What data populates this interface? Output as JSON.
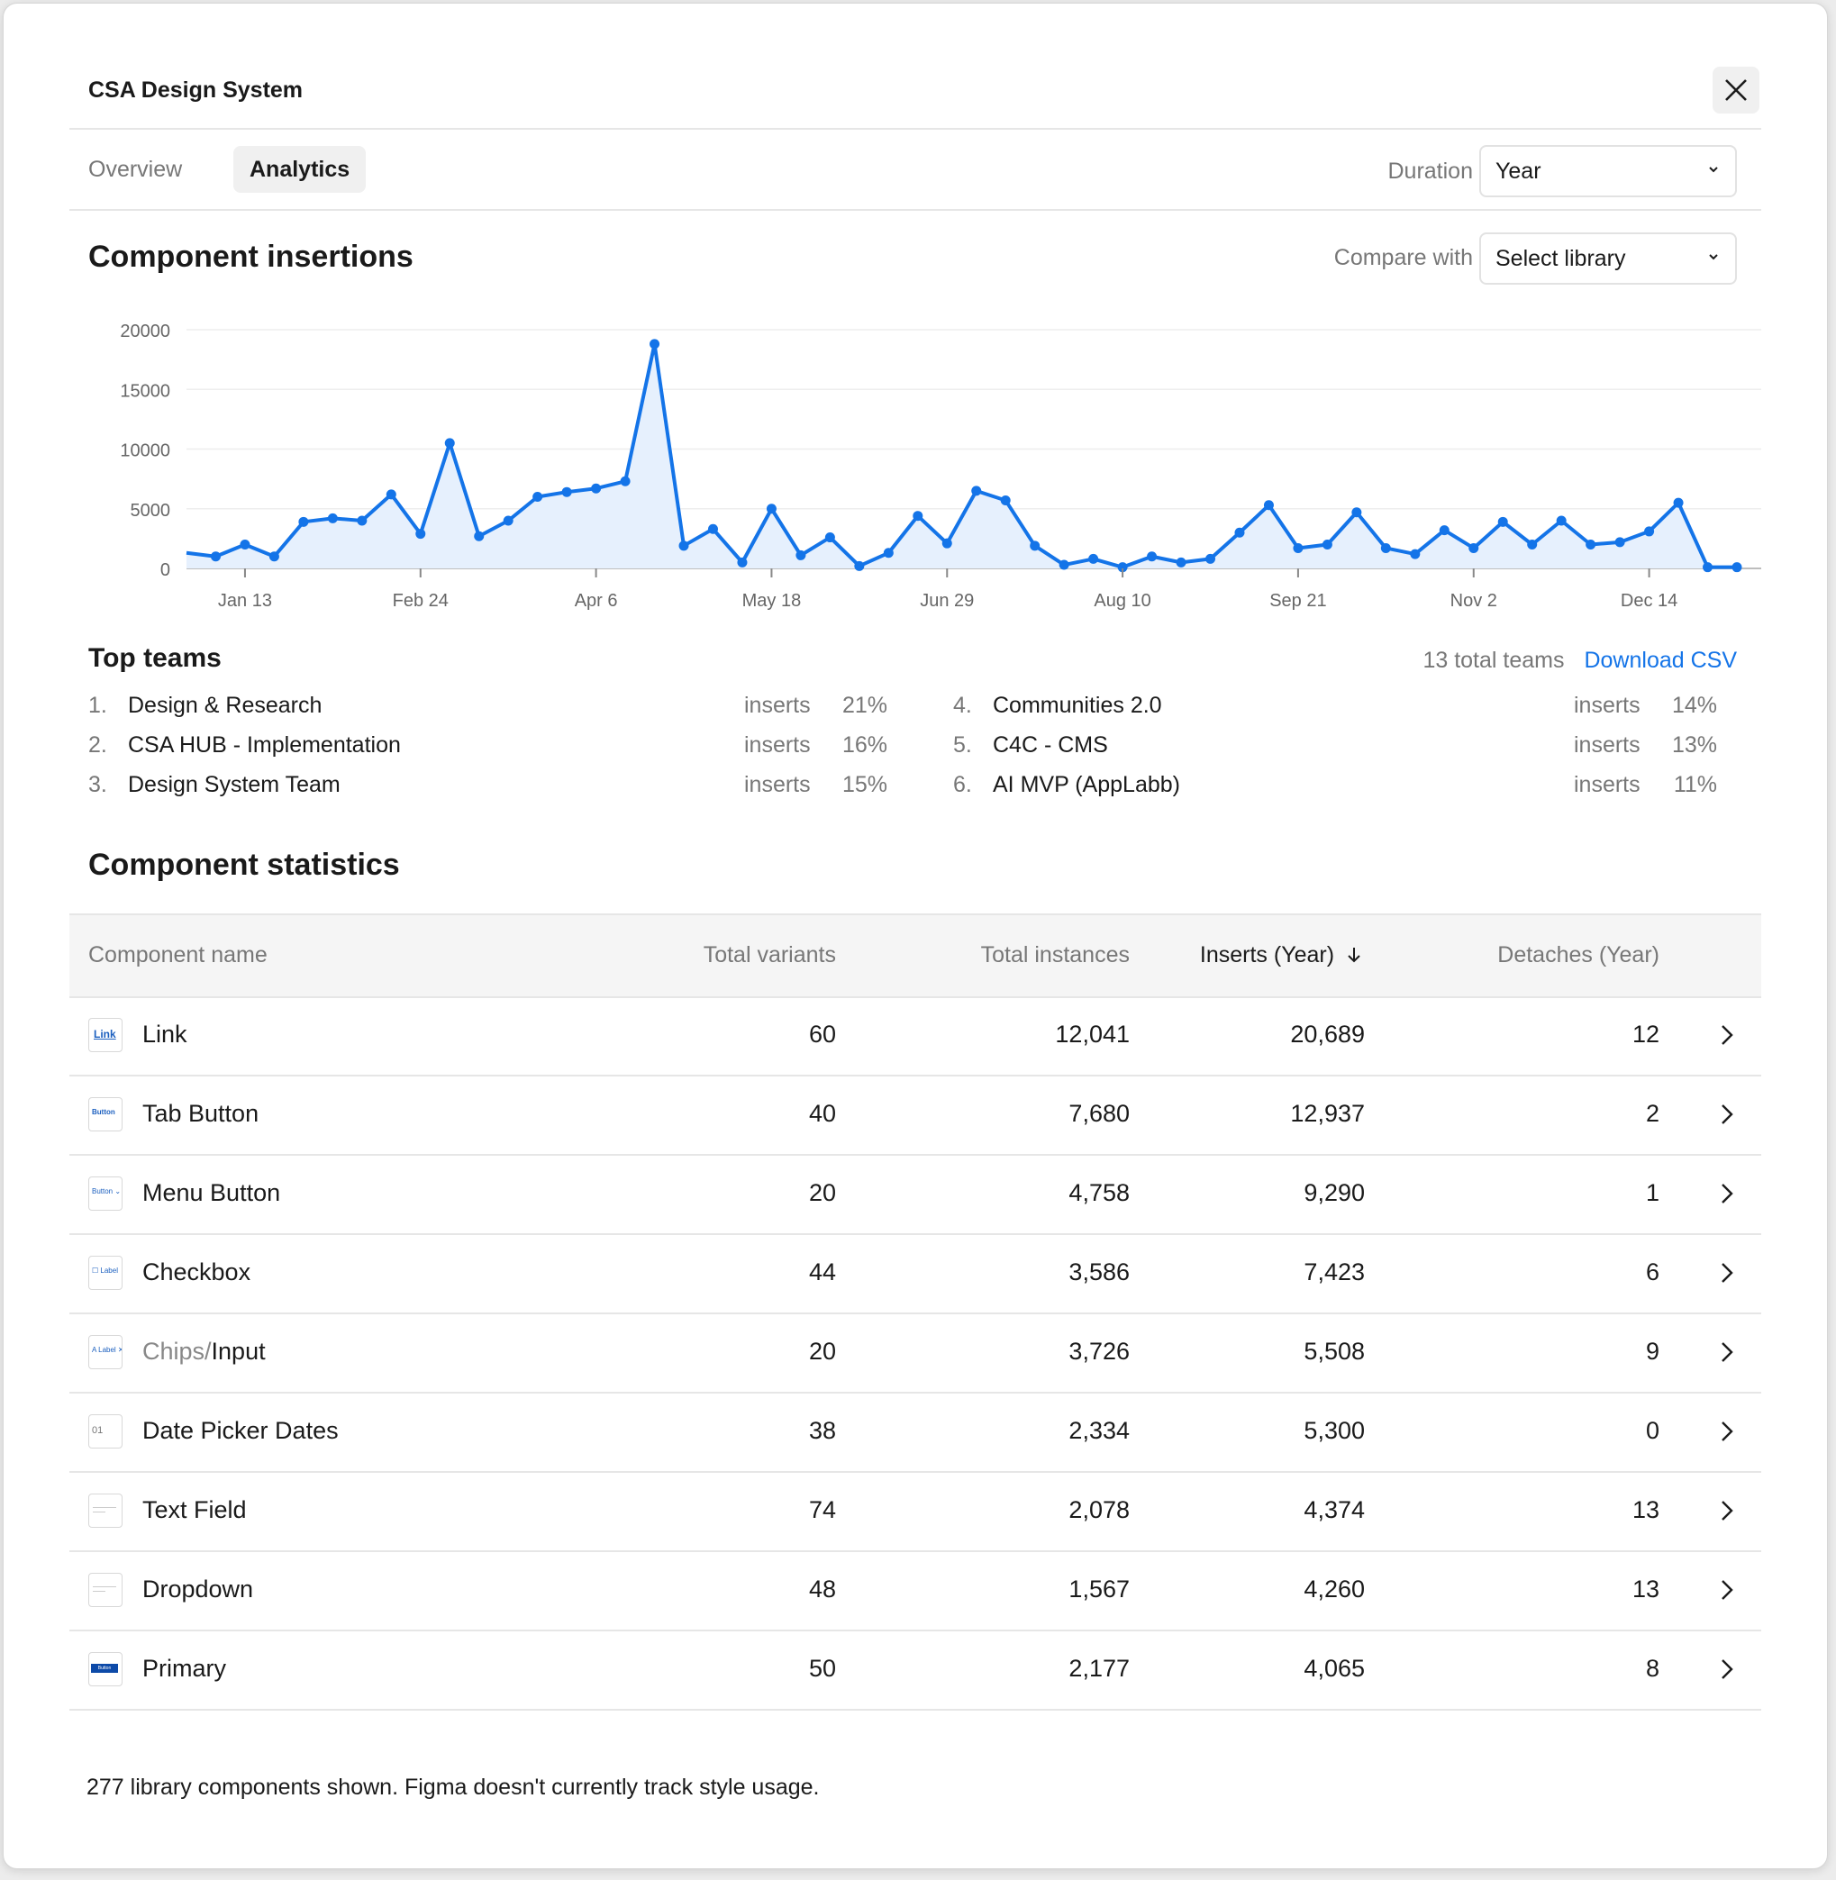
{
  "window": {
    "title": "CSA Design System"
  },
  "tabs": [
    {
      "label": "Overview",
      "active": false
    },
    {
      "label": "Analytics",
      "active": true
    }
  ],
  "filters": {
    "duration_label": "Duration",
    "duration_value": "Year",
    "compare_label": "Compare with",
    "compare_value": "Select library"
  },
  "insertions": {
    "heading": "Component insertions"
  },
  "chart_data": {
    "type": "area",
    "ylim": [
      0,
      20000
    ],
    "yticks": [
      0,
      5000,
      10000,
      15000,
      20000
    ],
    "xticks": [
      "Jan 13",
      "Feb 24",
      "Apr 6",
      "May 18",
      "Jun 29",
      "Aug 10",
      "Sep 21",
      "Nov 2",
      "Dec 14"
    ],
    "colors": {
      "line": "#1474e8",
      "fill": "#e6f0fd"
    },
    "values": [
      1300,
      1000,
      2000,
      1000,
      3900,
      4200,
      4000,
      6200,
      2900,
      10500,
      2700,
      4000,
      6000,
      6400,
      6700,
      7300,
      18800,
      1900,
      3300,
      500,
      5000,
      1100,
      2600,
      200,
      1300,
      4400,
      2100,
      6500,
      5700,
      1900,
      300,
      800,
      100,
      1000,
      500,
      800,
      3000,
      5300,
      1700,
      2000,
      4700,
      1700,
      1200,
      3200,
      1700,
      3900,
      2000,
      4000,
      2000,
      2200,
      3100,
      5500,
      100,
      100
    ]
  },
  "top_teams": {
    "heading": "Top teams",
    "count_text": "13 total teams",
    "download_label": "Download CSV",
    "metric_label": "inserts",
    "teams": [
      {
        "rank": "1.",
        "name": "Design & Research",
        "pct": "21%"
      },
      {
        "rank": "2.",
        "name": "CSA HUB - Implementation",
        "pct": "16%"
      },
      {
        "rank": "3.",
        "name": "Design System Team",
        "pct": "15%"
      },
      {
        "rank": "4.",
        "name": "Communities 2.0",
        "pct": "14%"
      },
      {
        "rank": "5.",
        "name": "C4C - CMS",
        "pct": "13%"
      },
      {
        "rank": "6.",
        "name": "AI MVP (AppLabb)",
        "pct": "11%"
      }
    ]
  },
  "stats": {
    "heading": "Component statistics",
    "columns": {
      "name": "Component name",
      "variants": "Total variants",
      "instances": "Total instances",
      "inserts": "Inserts (Year)",
      "detaches": "Detaches (Year)"
    },
    "rows": [
      {
        "prefix": "",
        "name": "Link",
        "variants": "60",
        "instances": "12,041",
        "inserts": "20,689",
        "detaches": "12",
        "thumb": "Link"
      },
      {
        "prefix": "",
        "name": "Tab Button",
        "variants": "40",
        "instances": "7,680",
        "inserts": "12,937",
        "detaches": "2",
        "thumb": "Button"
      },
      {
        "prefix": "",
        "name": "Menu Button",
        "variants": "20",
        "instances": "4,758",
        "inserts": "9,290",
        "detaches": "1",
        "thumb": "Button ⌄"
      },
      {
        "prefix": "",
        "name": "Checkbox",
        "variants": "44",
        "instances": "3,586",
        "inserts": "7,423",
        "detaches": "6",
        "thumb": "☐ Label"
      },
      {
        "prefix": "Chips/",
        "name": "Input",
        "variants": "20",
        "instances": "3,726",
        "inserts": "5,508",
        "detaches": "9",
        "thumb": "A Label ✕"
      },
      {
        "prefix": "",
        "name": "Date Picker Dates",
        "variants": "38",
        "instances": "2,334",
        "inserts": "5,300",
        "detaches": "0",
        "thumb": "01"
      },
      {
        "prefix": "",
        "name": "Text Field",
        "variants": "74",
        "instances": "2,078",
        "inserts": "4,374",
        "detaches": "13",
        "thumb": ""
      },
      {
        "prefix": "",
        "name": "Dropdown",
        "variants": "48",
        "instances": "1,567",
        "inserts": "4,260",
        "detaches": "13",
        "thumb": ""
      },
      {
        "prefix": "",
        "name": "Primary",
        "variants": "50",
        "instances": "2,177",
        "inserts": "4,065",
        "detaches": "8",
        "thumb": "Button"
      }
    ]
  },
  "footer": {
    "note": "277 library components shown. Figma doesn't currently track style usage."
  }
}
